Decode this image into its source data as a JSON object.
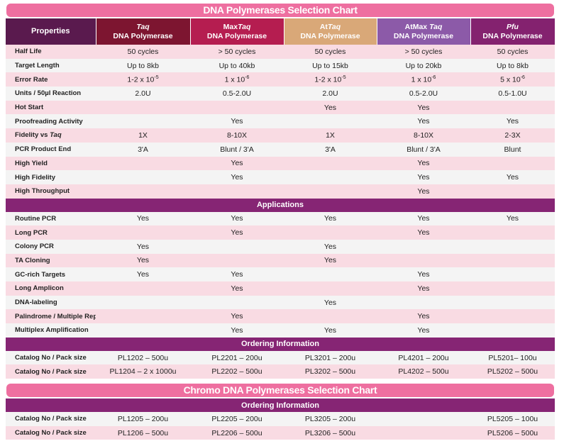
{
  "title": "DNA Polymerases Selection Chart",
  "header": {
    "properties": "Properties",
    "columns": [
      {
        "name": "Taq",
        "line2": "DNA Polymerase",
        "color": "#7d1530"
      },
      {
        "name": "MaxTaq",
        "line2": "DNA Polymerase",
        "color": "#b51d50"
      },
      {
        "name": "AtTaq",
        "line2": "DNA Polymerase",
        "color": "#d9a878"
      },
      {
        "name": "AtMax Taq",
        "line2": "DNA Polymerase",
        "color": "#8c5aa8"
      },
      {
        "name": "Pfu",
        "line2": "DNA Polymerase",
        "color": "#84226f"
      }
    ]
  },
  "properties": [
    {
      "label": "Half Life",
      "values": [
        "50 cycles",
        "> 50 cycles",
        "50 cycles",
        "> 50 cycles",
        "50 cycles"
      ]
    },
    {
      "label": "Target Length",
      "values": [
        "Up to 8kb",
        "Up to 40kb",
        "Up to 15kb",
        "Up to 20kb",
        "Up to 8kb"
      ]
    },
    {
      "label": "Error Rate",
      "values": [
        "1-2 x 10^-5",
        "1 x 10^-6",
        "1-2 x 10^-5",
        "1 x 10^-6",
        "5 x 10^-6"
      ]
    },
    {
      "label": "Units / 50µl Reaction",
      "values": [
        "2.0U",
        "0.5-2.0U",
        "2.0U",
        "0.5-2.0U",
        "0.5-1.0U"
      ]
    },
    {
      "label": "Hot Start",
      "values": [
        "",
        "",
        "Yes",
        "Yes",
        ""
      ]
    },
    {
      "label": "Proofreading Activity",
      "values": [
        "",
        "Yes",
        "",
        "Yes",
        "Yes"
      ]
    },
    {
      "label": "Fidelity vs Taq",
      "values": [
        "1X",
        "8-10X",
        "1X",
        "8-10X",
        "2-3X"
      ]
    },
    {
      "label": "PCR Product End",
      "values": [
        "3'A",
        "Blunt / 3'A",
        "3'A",
        "Blunt / 3'A",
        "Blunt"
      ]
    },
    {
      "label": "High Yield",
      "values": [
        "",
        "Yes",
        "",
        "Yes",
        ""
      ]
    },
    {
      "label": "High Fidelity",
      "values": [
        "",
        "Yes",
        "",
        "Yes",
        "Yes"
      ]
    },
    {
      "label": "High Throughput",
      "values": [
        "",
        "",
        "",
        "Yes",
        ""
      ]
    }
  ],
  "applications_title": "Applications",
  "applications": [
    {
      "label": "Routine PCR",
      "values": [
        "Yes",
        "Yes",
        "Yes",
        "Yes",
        "Yes"
      ]
    },
    {
      "label": "Long PCR",
      "values": [
        "",
        "Yes",
        "",
        "Yes",
        ""
      ]
    },
    {
      "label": "Colony PCR",
      "values": [
        "Yes",
        "",
        "Yes",
        "",
        ""
      ]
    },
    {
      "label": "TA Cloning",
      "values": [
        "Yes",
        "",
        "Yes",
        "",
        ""
      ]
    },
    {
      "label": "GC-rich Targets",
      "values": [
        "Yes",
        "Yes",
        "",
        "Yes",
        ""
      ]
    },
    {
      "label": "Long Amplicon",
      "values": [
        "",
        "Yes",
        "",
        "Yes",
        ""
      ]
    },
    {
      "label": "DNA-labeling",
      "values": [
        "",
        "",
        "Yes",
        "",
        ""
      ]
    },
    {
      "label": "Palindrome / Multiple Repeats",
      "values": [
        "",
        "Yes",
        "",
        "Yes",
        ""
      ]
    },
    {
      "label": "Multiplex Amplification",
      "values": [
        "",
        "Yes",
        "Yes",
        "Yes",
        ""
      ]
    }
  ],
  "ordering_title": "Ordering Information",
  "ordering": [
    {
      "label": "Catalog No / Pack size",
      "values": [
        "PL1202 – 500u",
        "PL2201 – 200u",
        "PL3201 –  200u",
        "PL4201 – 200u",
        "PL5201– 100u"
      ]
    },
    {
      "label": "Catalog No / Pack size",
      "values": [
        "PL1204 – 2 x 1000u",
        "PL2202 – 500u",
        "PL3202 – 500u",
        "PL4202 – 500u",
        "PL5202 – 500u"
      ]
    }
  ],
  "chromo_title": "Chromo DNA Polymerases Selection Chart",
  "chromo_ordering_title": "Ordering Information",
  "chromo_ordering": [
    {
      "label": "Catalog No / Pack size",
      "values": [
        "PL1205 – 200u",
        "PL2205 – 200u",
        "PL3205 – 200u",
        "",
        "PL5205 – 100u"
      ]
    },
    {
      "label": "Catalog No / Pack size",
      "values": [
        "PL1206 – 500u",
        "PL2206 – 500u",
        "PL3206 – 500u",
        "",
        "PL5206 – 500u"
      ]
    }
  ]
}
